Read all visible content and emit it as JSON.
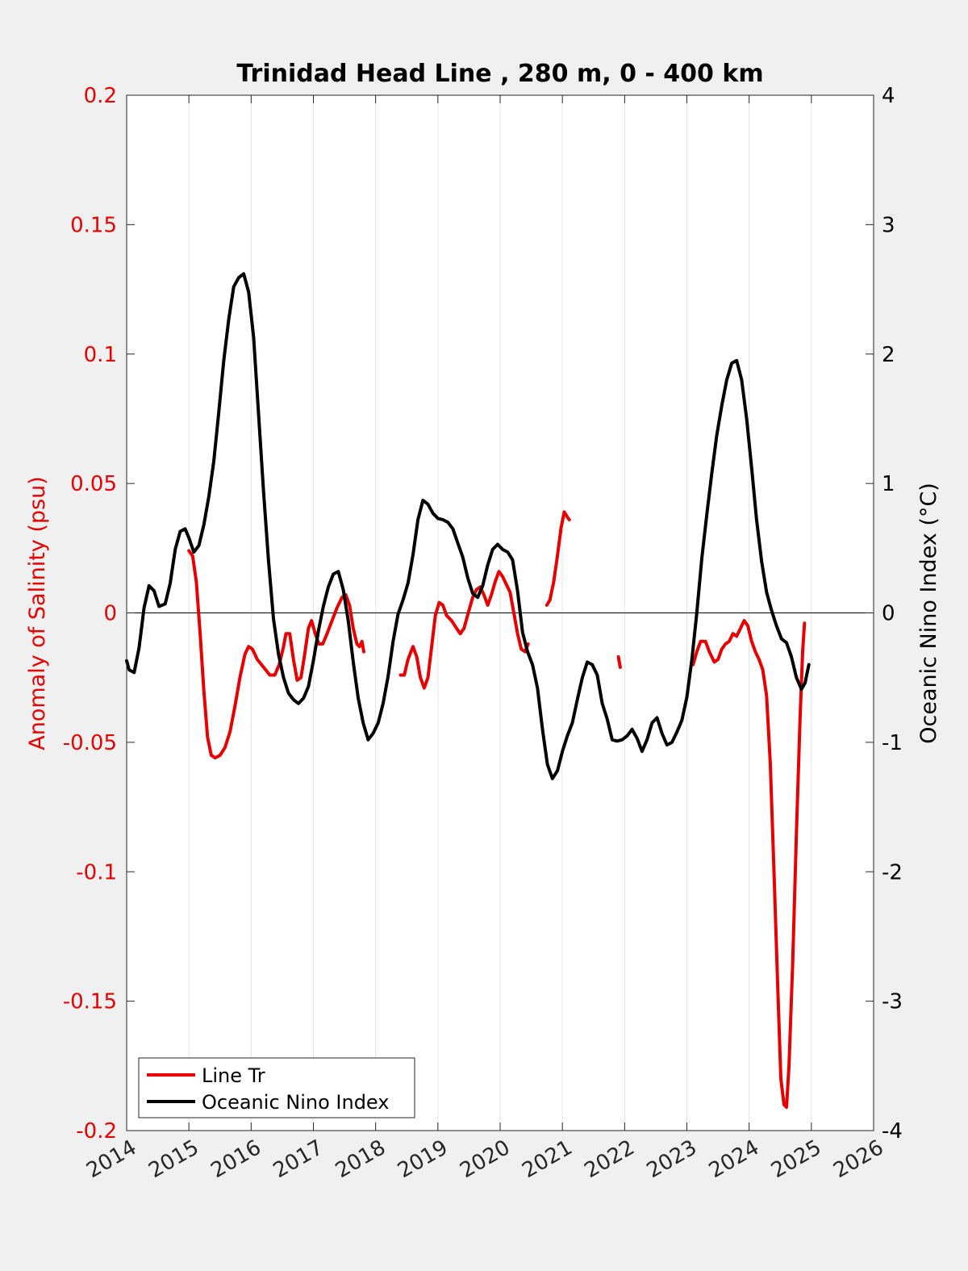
{
  "chart_data": {
    "type": "line",
    "title": "Trinidad Head Line , 280 m, 0 - 400 km",
    "xlabel": "",
    "ylabel_left": "Anomaly of Salinity (psu)",
    "ylabel_right": "Oceanic Nino Index (°C)",
    "xlim": [
      2014,
      2026
    ],
    "ylim_left": [
      -0.2,
      0.2
    ],
    "ylim_right": [
      -4,
      4
    ],
    "xticks": [
      "2014",
      "2015",
      "2016",
      "2017",
      "2018",
      "2019",
      "2020",
      "2021",
      "2022",
      "2023",
      "2024",
      "2025",
      "2026"
    ],
    "yticks_left": [
      "0.2",
      "0.15",
      "0.1",
      "0.05",
      "0",
      "-0.05",
      "-0.1",
      "-0.15",
      "-0.2"
    ],
    "yticks_right": [
      "4",
      "3",
      "2",
      "1",
      "0",
      "-1",
      "-2",
      "-3",
      "-4"
    ],
    "grid": "vertical",
    "legend_position": "bottom-left",
    "colors": {
      "salinity": "#e60000",
      "oni": "#000000",
      "left_axis": "#e60000",
      "right_axis": "#000000"
    },
    "series": [
      {
        "name": "Line Tr",
        "axis": "left",
        "segments": [
          [
            [
              2015.0,
              0.024
            ],
            [
              2015.06,
              0.022
            ],
            [
              2015.12,
              0.012
            ],
            [
              2015.18,
              -0.008
            ],
            [
              2015.24,
              -0.03
            ],
            [
              2015.3,
              -0.048
            ],
            [
              2015.36,
              -0.055
            ],
            [
              2015.42,
              -0.056
            ],
            [
              2015.5,
              -0.055
            ],
            [
              2015.58,
              -0.052
            ],
            [
              2015.66,
              -0.046
            ],
            [
              2015.74,
              -0.036
            ],
            [
              2015.82,
              -0.025
            ],
            [
              2015.9,
              -0.016
            ],
            [
              2015.96,
              -0.013
            ],
            [
              2016.02,
              -0.014
            ],
            [
              2016.1,
              -0.018
            ],
            [
              2016.2,
              -0.021
            ],
            [
              2016.3,
              -0.024
            ],
            [
              2016.38,
              -0.024
            ],
            [
              2016.45,
              -0.02
            ],
            [
              2016.52,
              -0.013
            ],
            [
              2016.56,
              -0.008
            ],
            [
              2016.62,
              -0.008
            ],
            [
              2016.68,
              -0.018
            ],
            [
              2016.74,
              -0.026
            ],
            [
              2016.8,
              -0.025
            ],
            [
              2016.86,
              -0.016
            ],
            [
              2016.92,
              -0.006
            ],
            [
              2016.97,
              -0.003
            ],
            [
              2017.03,
              -0.008
            ],
            [
              2017.09,
              -0.012
            ],
            [
              2017.15,
              -0.012
            ],
            [
              2017.22,
              -0.008
            ],
            [
              2017.3,
              -0.003
            ],
            [
              2017.38,
              0.002
            ],
            [
              2017.46,
              0.006
            ],
            [
              2017.52,
              0.007
            ],
            [
              2017.58,
              0.003
            ],
            [
              2017.64,
              -0.006
            ],
            [
              2017.7,
              -0.012
            ],
            [
              2017.74,
              -0.013
            ],
            [
              2017.78,
              -0.011
            ],
            [
              2017.81,
              -0.015
            ]
          ],
          [
            [
              2018.4,
              -0.024
            ],
            [
              2018.46,
              -0.024
            ],
            [
              2018.52,
              -0.018
            ],
            [
              2018.6,
              -0.013
            ],
            [
              2018.66,
              -0.017
            ],
            [
              2018.72,
              -0.025
            ],
            [
              2018.78,
              -0.029
            ],
            [
              2018.84,
              -0.025
            ],
            [
              2018.9,
              -0.013
            ],
            [
              2018.96,
              -0.001
            ],
            [
              2019.02,
              0.004
            ],
            [
              2019.08,
              0.003
            ],
            [
              2019.14,
              -0.001
            ],
            [
              2019.22,
              -0.003
            ],
            [
              2019.3,
              -0.006
            ],
            [
              2019.36,
              -0.008
            ],
            [
              2019.42,
              -0.006
            ],
            [
              2019.5,
              0.001
            ],
            [
              2019.56,
              0.006
            ],
            [
              2019.62,
              0.009
            ],
            [
              2019.68,
              0.01
            ],
            [
              2019.74,
              0.007
            ],
            [
              2019.8,
              0.003
            ],
            [
              2019.86,
              0.007
            ],
            [
              2019.92,
              0.012
            ],
            [
              2019.98,
              0.016
            ],
            [
              2020.04,
              0.014
            ],
            [
              2020.1,
              0.011
            ],
            [
              2020.16,
              0.008
            ],
            [
              2020.22,
              0.0
            ],
            [
              2020.28,
              -0.008
            ],
            [
              2020.34,
              -0.014
            ],
            [
              2020.4,
              -0.015
            ],
            [
              2020.45,
              -0.012
            ]
          ],
          [
            [
              2020.75,
              0.003
            ],
            [
              2020.8,
              0.005
            ],
            [
              2020.86,
              0.012
            ],
            [
              2020.92,
              0.022
            ],
            [
              2020.98,
              0.033
            ],
            [
              2021.03,
              0.039
            ],
            [
              2021.08,
              0.037
            ],
            [
              2021.11,
              0.036
            ]
          ],
          [
            [
              2021.9,
              -0.017
            ],
            [
              2021.93,
              -0.021
            ]
          ],
          [
            [
              2023.1,
              -0.02
            ],
            [
              2023.16,
              -0.015
            ],
            [
              2023.22,
              -0.011
            ],
            [
              2023.3,
              -0.011
            ],
            [
              2023.36,
              -0.015
            ],
            [
              2023.44,
              -0.019
            ],
            [
              2023.5,
              -0.018
            ],
            [
              2023.56,
              -0.014
            ],
            [
              2023.62,
              -0.012
            ],
            [
              2023.68,
              -0.011
            ],
            [
              2023.74,
              -0.008
            ],
            [
              2023.8,
              -0.009
            ],
            [
              2023.86,
              -0.006
            ],
            [
              2023.92,
              -0.003
            ],
            [
              2023.98,
              -0.005
            ],
            [
              2024.04,
              -0.011
            ],
            [
              2024.1,
              -0.015
            ],
            [
              2024.16,
              -0.018
            ],
            [
              2024.22,
              -0.022
            ],
            [
              2024.28,
              -0.032
            ],
            [
              2024.34,
              -0.058
            ],
            [
              2024.4,
              -0.1
            ],
            [
              2024.46,
              -0.145
            ],
            [
              2024.51,
              -0.18
            ],
            [
              2024.56,
              -0.19
            ],
            [
              2024.6,
              -0.191
            ],
            [
              2024.64,
              -0.175
            ],
            [
              2024.7,
              -0.135
            ],
            [
              2024.76,
              -0.085
            ],
            [
              2024.82,
              -0.04
            ],
            [
              2024.86,
              -0.015
            ],
            [
              2024.89,
              -0.004
            ]
          ]
        ]
      },
      {
        "name": "Oceanic Nino Index",
        "axis": "right",
        "segments": [
          [
            [
              2014.0,
              -0.37
            ],
            [
              2014.04,
              -0.44
            ],
            [
              2014.12,
              -0.46
            ],
            [
              2014.2,
              -0.27
            ],
            [
              2014.28,
              0.04
            ],
            [
              2014.36,
              0.21
            ],
            [
              2014.44,
              0.17
            ],
            [
              2014.52,
              0.05
            ],
            [
              2014.62,
              0.07
            ],
            [
              2014.7,
              0.23
            ],
            [
              2014.78,
              0.49
            ],
            [
              2014.86,
              0.63
            ],
            [
              2014.94,
              0.65
            ],
            [
              2015.0,
              0.58
            ],
            [
              2015.08,
              0.47
            ],
            [
              2015.16,
              0.52
            ],
            [
              2015.24,
              0.68
            ],
            [
              2015.32,
              0.9
            ],
            [
              2015.4,
              1.17
            ],
            [
              2015.48,
              1.55
            ],
            [
              2015.56,
              1.95
            ],
            [
              2015.64,
              2.27
            ],
            [
              2015.72,
              2.52
            ],
            [
              2015.8,
              2.59
            ],
            [
              2015.88,
              2.62
            ],
            [
              2015.96,
              2.48
            ],
            [
              2016.04,
              2.13
            ],
            [
              2016.12,
              1.53
            ],
            [
              2016.2,
              0.93
            ],
            [
              2016.28,
              0.4
            ],
            [
              2016.36,
              -0.05
            ],
            [
              2016.44,
              -0.32
            ],
            [
              2016.52,
              -0.5
            ],
            [
              2016.6,
              -0.62
            ],
            [
              2016.68,
              -0.67
            ],
            [
              2016.76,
              -0.7
            ],
            [
              2016.84,
              -0.66
            ],
            [
              2016.92,
              -0.57
            ],
            [
              2017.0,
              -0.37
            ],
            [
              2017.08,
              -0.14
            ],
            [
              2017.16,
              0.05
            ],
            [
              2017.24,
              0.2
            ],
            [
              2017.32,
              0.3
            ],
            [
              2017.4,
              0.32
            ],
            [
              2017.48,
              0.18
            ],
            [
              2017.56,
              -0.06
            ],
            [
              2017.64,
              -0.38
            ],
            [
              2017.72,
              -0.66
            ],
            [
              2017.8,
              -0.85
            ],
            [
              2017.88,
              -0.98
            ],
            [
              2017.96,
              -0.93
            ],
            [
              2018.04,
              -0.85
            ],
            [
              2018.12,
              -0.7
            ],
            [
              2018.2,
              -0.49
            ],
            [
              2018.28,
              -0.22
            ],
            [
              2018.36,
              -0.01
            ],
            [
              2018.44,
              0.1
            ],
            [
              2018.52,
              0.23
            ],
            [
              2018.6,
              0.45
            ],
            [
              2018.68,
              0.72
            ],
            [
              2018.76,
              0.87
            ],
            [
              2018.84,
              0.84
            ],
            [
              2018.92,
              0.77
            ],
            [
              2019.0,
              0.73
            ],
            [
              2019.08,
              0.72
            ],
            [
              2019.16,
              0.7
            ],
            [
              2019.24,
              0.65
            ],
            [
              2019.32,
              0.54
            ],
            [
              2019.4,
              0.43
            ],
            [
              2019.48,
              0.27
            ],
            [
              2019.56,
              0.15
            ],
            [
              2019.64,
              0.12
            ],
            [
              2019.72,
              0.21
            ],
            [
              2019.8,
              0.37
            ],
            [
              2019.88,
              0.49
            ],
            [
              2019.96,
              0.53
            ],
            [
              2020.04,
              0.49
            ],
            [
              2020.12,
              0.47
            ],
            [
              2020.2,
              0.41
            ],
            [
              2020.28,
              0.17
            ],
            [
              2020.36,
              -0.15
            ],
            [
              2020.44,
              -0.3
            ],
            [
              2020.52,
              -0.4
            ],
            [
              2020.6,
              -0.58
            ],
            [
              2020.68,
              -0.9
            ],
            [
              2020.76,
              -1.17
            ],
            [
              2020.84,
              -1.28
            ],
            [
              2020.92,
              -1.22
            ],
            [
              2021.0,
              -1.07
            ],
            [
              2021.08,
              -0.95
            ],
            [
              2021.16,
              -0.85
            ],
            [
              2021.24,
              -0.67
            ],
            [
              2021.32,
              -0.5
            ],
            [
              2021.4,
              -0.38
            ],
            [
              2021.48,
              -0.4
            ],
            [
              2021.56,
              -0.48
            ],
            [
              2021.64,
              -0.7
            ],
            [
              2021.72,
              -0.82
            ],
            [
              2021.8,
              -0.98
            ],
            [
              2021.88,
              -0.99
            ],
            [
              2021.96,
              -0.98
            ],
            [
              2022.04,
              -0.95
            ],
            [
              2022.12,
              -0.9
            ],
            [
              2022.2,
              -0.97
            ],
            [
              2022.28,
              -1.07
            ],
            [
              2022.36,
              -0.98
            ],
            [
              2022.44,
              -0.85
            ],
            [
              2022.52,
              -0.81
            ],
            [
              2022.6,
              -0.93
            ],
            [
              2022.68,
              -1.02
            ],
            [
              2022.76,
              -1.0
            ],
            [
              2022.84,
              -0.92
            ],
            [
              2022.92,
              -0.83
            ],
            [
              2023.0,
              -0.65
            ],
            [
              2023.08,
              -0.36
            ],
            [
              2023.16,
              0.0
            ],
            [
              2023.24,
              0.42
            ],
            [
              2023.32,
              0.76
            ],
            [
              2023.4,
              1.08
            ],
            [
              2023.48,
              1.37
            ],
            [
              2023.56,
              1.6
            ],
            [
              2023.64,
              1.8
            ],
            [
              2023.72,
              1.93
            ],
            [
              2023.8,
              1.95
            ],
            [
              2023.88,
              1.8
            ],
            [
              2023.96,
              1.5
            ],
            [
              2024.04,
              1.12
            ],
            [
              2024.12,
              0.72
            ],
            [
              2024.2,
              0.4
            ],
            [
              2024.28,
              0.16
            ],
            [
              2024.36,
              0.02
            ],
            [
              2024.44,
              -0.1
            ],
            [
              2024.52,
              -0.2
            ],
            [
              2024.6,
              -0.23
            ],
            [
              2024.68,
              -0.34
            ],
            [
              2024.76,
              -0.5
            ],
            [
              2024.84,
              -0.59
            ],
            [
              2024.9,
              -0.54
            ],
            [
              2024.96,
              -0.4
            ]
          ]
        ]
      }
    ]
  }
}
